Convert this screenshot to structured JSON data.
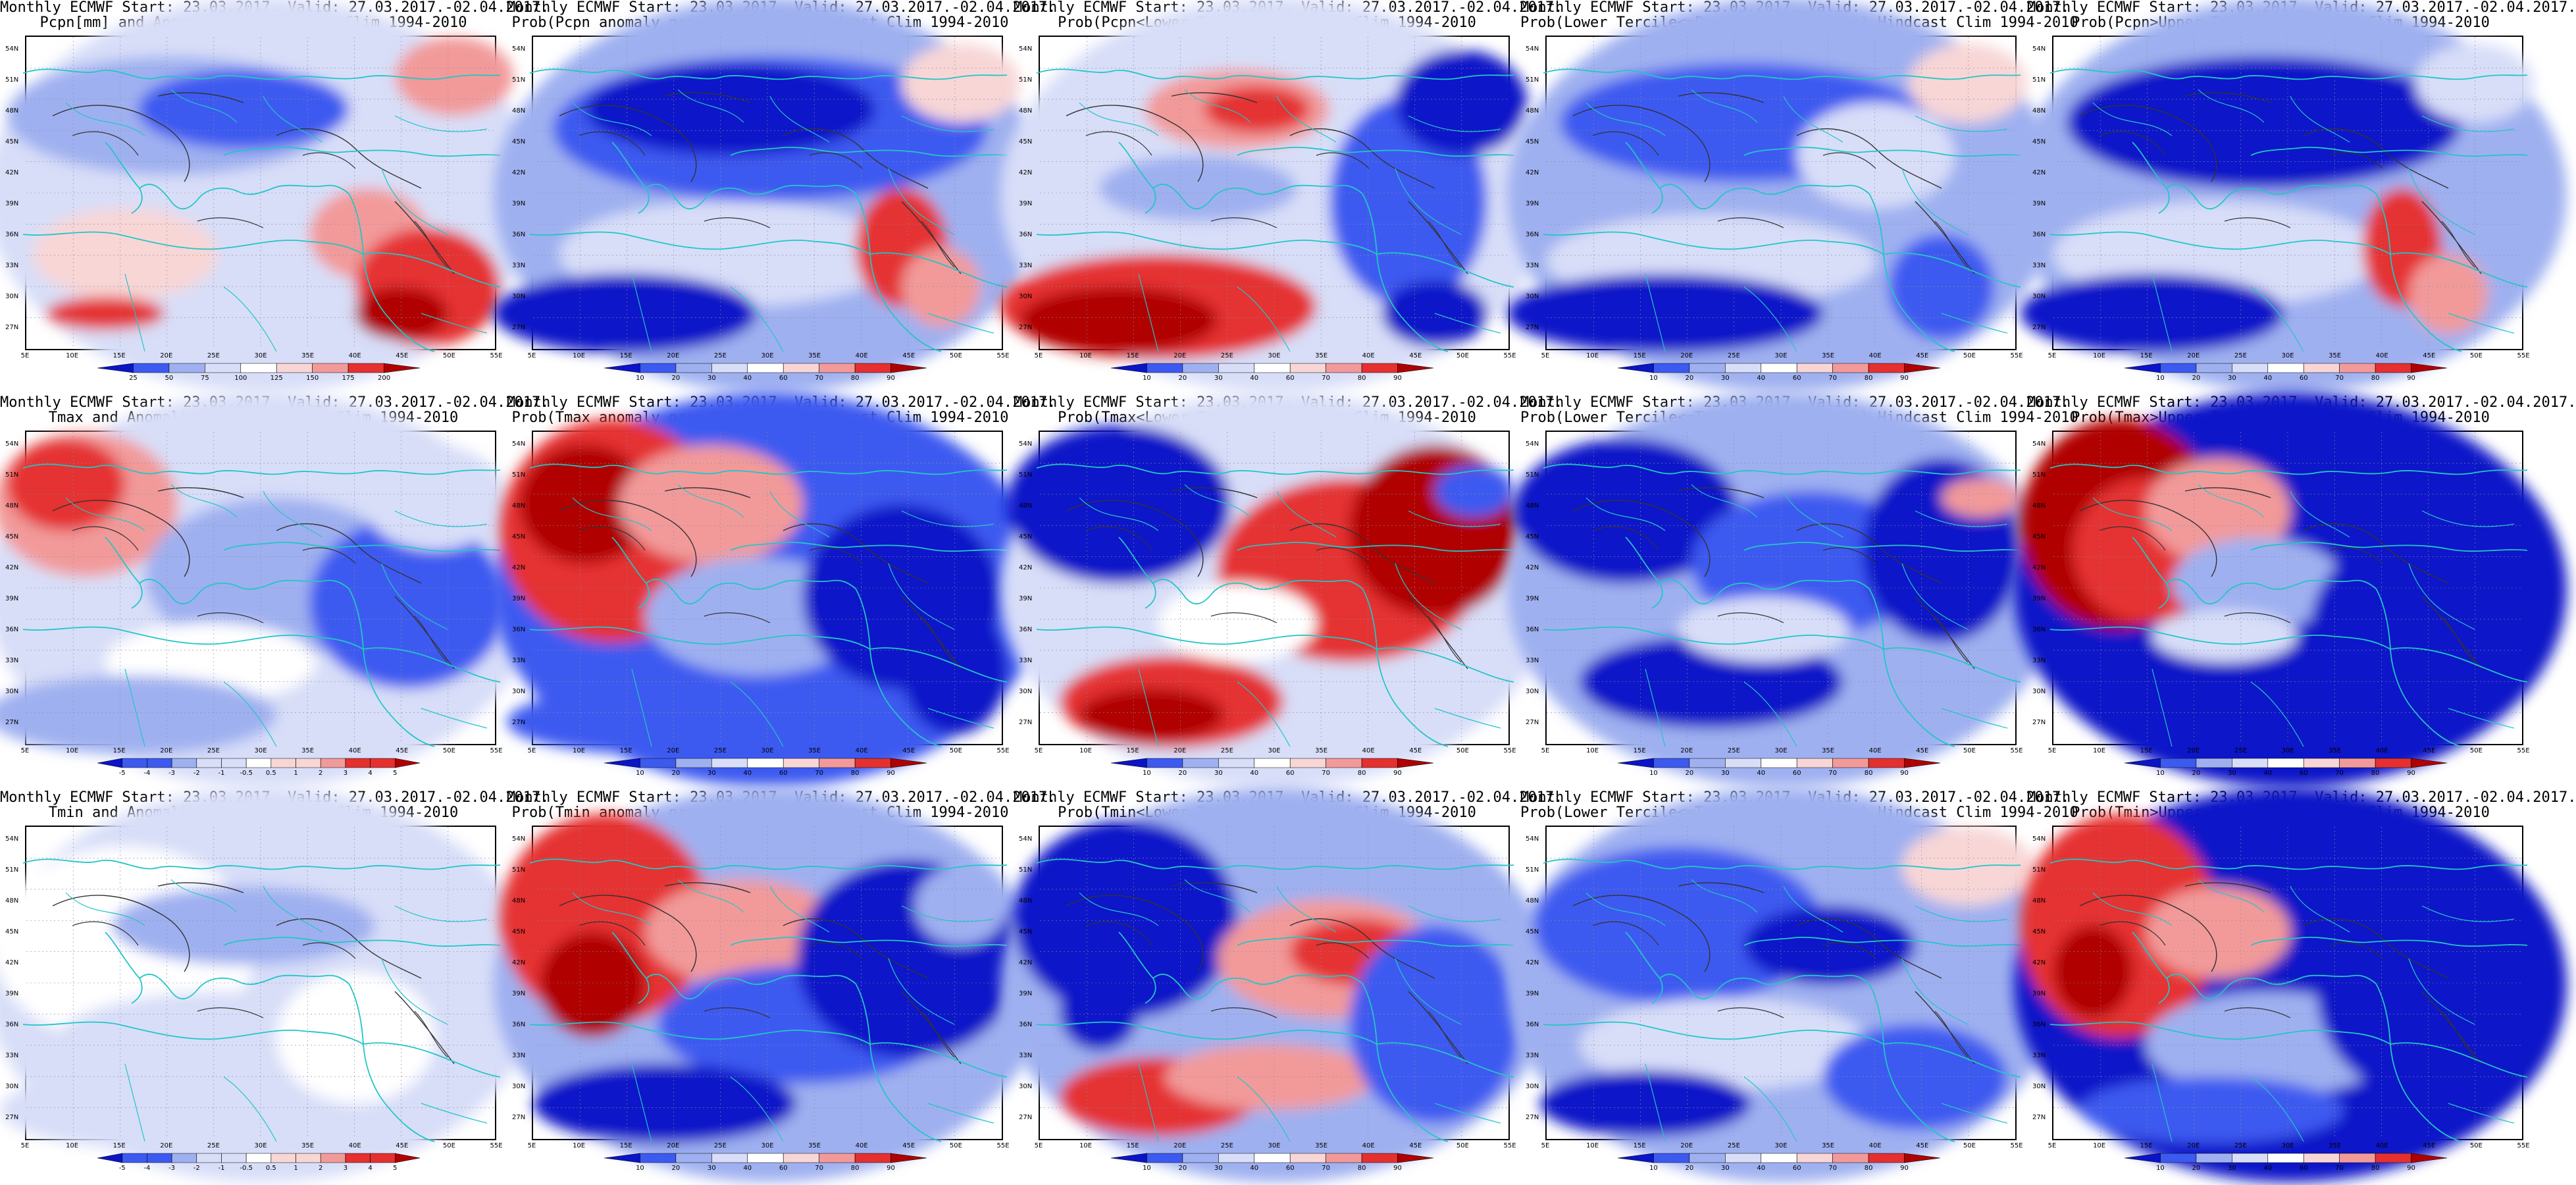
{
  "axes": {
    "lat_labels": [
      "54N",
      "51N",
      "48N",
      "45N",
      "42N",
      "39N",
      "36N",
      "33N",
      "30N",
      "27N"
    ],
    "lon_labels": [
      "5E",
      "10E",
      "15E",
      "20E",
      "25E",
      "30E",
      "35E",
      "40E",
      "45E",
      "50E",
      "55E"
    ]
  },
  "colors": {
    "deep_blue": "#0a14c8",
    "blue": "#3c5af0",
    "light_blue": "#9fb0f0",
    "pale_blue": "#d8def8",
    "white": "#ffffff",
    "pale_red": "#f8d6d6",
    "light_red": "#f29a9a",
    "red": "#e53030",
    "dark_red": "#b00000",
    "coastline": "#22c6c6",
    "contour": "#333333"
  },
  "panels": [
    {
      "title1": "Monthly ECMWF Start: 23.03.2017. Valid: 27.03.2017.-02.04.2017.",
      "title2": "Pcpn[mm] and Anomalies[%] Hindcast Clim 1994-2010",
      "colorbar": [
        "25",
        "50",
        "75",
        "100",
        "125",
        "150",
        "175",
        "200"
      ],
      "pattern": "pcp_anom"
    },
    {
      "title1": "Monthly ECMWF Start: 23.03.2017. Valid: 27.03.2017.-02.04.2017.",
      "title2": "Prob(Pcpn anomaly greater then 0) Hindcast Clim 1994-2010",
      "colorbar": [
        "10",
        "20",
        "30",
        "40",
        "60",
        "70",
        "80",
        "90"
      ],
      "pattern": "pcp_gt0"
    },
    {
      "title1": "Monthly ECMWF Start: 23.03.2017. Valid: 27.03.2017.-02.04.2017.",
      "title2": "Prob(Pcpn<Lower Tercile) Hindcast Clim 1994-2010",
      "colorbar": [
        "10",
        "20",
        "30",
        "40",
        "60",
        "70",
        "80",
        "90"
      ],
      "pattern": "pcp_low"
    },
    {
      "title1": "Monthly ECMWF Start: 23.03.2017. Valid: 27.03.2017.-02.04.2017.",
      "title2": "Prob(Lower Tercile<=Pcpn<=Upper Tercile) Hindcast Clim 1994-2010",
      "colorbar": [
        "10",
        "20",
        "30",
        "40",
        "60",
        "70",
        "80",
        "90"
      ],
      "pattern": "pcp_mid"
    },
    {
      "title1": "Monthly ECMWF Start: 23.03.2017. Valid: 27.03.2017.-02.04.2017.",
      "title2": "Prob(Pcpn>Upper Tercile) Hindcast Clim 1994-2010",
      "colorbar": [
        "10",
        "20",
        "30",
        "40",
        "60",
        "70",
        "80",
        "90"
      ],
      "pattern": "pcp_up"
    },
    {
      "title1": "Monthly ECMWF Start: 23.03.2017. Valid: 27.03.2017.-02.04.2017.",
      "title2": "Tmax and Anomalies [°C] Hindcast Clim 1994-2010",
      "colorbar": [
        "-5",
        "-4",
        "-3",
        "-2",
        "-1",
        "-0.5",
        "0.5",
        "1",
        "2",
        "3",
        "4",
        "5"
      ],
      "pattern": "tmax_anom"
    },
    {
      "title1": "Monthly ECMWF Start: 23.03.2017. Valid: 27.03.2017.-02.04.2017.",
      "title2": "Prob(Tmax anomaly greater then 0) Hindcast Clim 1994-2010",
      "colorbar": [
        "10",
        "20",
        "30",
        "40",
        "60",
        "70",
        "80",
        "90"
      ],
      "pattern": "tmax_gt0"
    },
    {
      "title1": "Monthly ECMWF Start: 23.03.2017. Valid: 27.03.2017.-02.04.2017.",
      "title2": "Prob(Tmax<Lower Tercile) Hindcast Clim 1994-2010",
      "colorbar": [
        "10",
        "20",
        "30",
        "40",
        "60",
        "70",
        "80",
        "90"
      ],
      "pattern": "tmax_low"
    },
    {
      "title1": "Monthly ECMWF Start: 23.03.2017. Valid: 27.03.2017.-02.04.2017.",
      "title2": "Prob(Lower Tercile<=Tmax<=Upper Tercile) Hindcast Clim 1994-2010",
      "colorbar": [
        "10",
        "20",
        "30",
        "40",
        "60",
        "70",
        "80",
        "90"
      ],
      "pattern": "tmax_mid"
    },
    {
      "title1": "Monthly ECMWF Start: 23.03.2017. Valid: 27.03.2017.-02.04.2017.",
      "title2": "Prob(Tmax>Upper Tercile) Hindcast Clim 1994-2010",
      "colorbar": [
        "10",
        "20",
        "30",
        "40",
        "60",
        "70",
        "80",
        "90"
      ],
      "pattern": "tmax_up"
    },
    {
      "title1": "Monthly ECMWF Start: 23.03.2017. Valid: 27.03.2017.-02.04.2017.",
      "title2": "Tmin and Anomalies [°C] Hindcast Clim 1994-2010",
      "colorbar": [
        "-5",
        "-4",
        "-3",
        "-2",
        "-1",
        "-0.5",
        "0.5",
        "1",
        "2",
        "3",
        "4",
        "5"
      ],
      "pattern": "tmin_anom"
    },
    {
      "title1": "Monthly ECMWF Start: 23.03.2017. Valid: 27.03.2017.-02.04.2017.",
      "title2": "Prob(Tmin anomaly greater then 0) Hindcast Clim 1994-2010",
      "colorbar": [
        "10",
        "20",
        "30",
        "40",
        "60",
        "70",
        "80",
        "90"
      ],
      "pattern": "tmin_gt0"
    },
    {
      "title1": "Monthly ECMWF Start: 23.03.2017. Valid: 27.03.2017.-02.04.2017.",
      "title2": "Prob(Tmin<Lower Tercile) Hindcast Clim 1994-2010",
      "colorbar": [
        "10",
        "20",
        "30",
        "40",
        "60",
        "70",
        "80",
        "90"
      ],
      "pattern": "tmin_low"
    },
    {
      "title1": "Monthly ECMWF Start: 23.03.2017. Valid: 27.03.2017.-02.04.2017.",
      "title2": "Prob(Lower Tercile<=Tmin<=Upper Tercile) Hindcast Clim 1994-2010",
      "colorbar": [
        "10",
        "20",
        "30",
        "40",
        "60",
        "70",
        "80",
        "90"
      ],
      "pattern": "tmin_mid"
    },
    {
      "title1": "Monthly ECMWF Start: 23.03.2017. Valid: 27.03.2017.-02.04.2017.",
      "title2": "Prob(Tmin>Upper Tercile) Hindcast Clim 1994-2010",
      "colorbar": [
        "10",
        "20",
        "30",
        "40",
        "60",
        "70",
        "80",
        "90"
      ],
      "pattern": "tmin_up"
    }
  ]
}
